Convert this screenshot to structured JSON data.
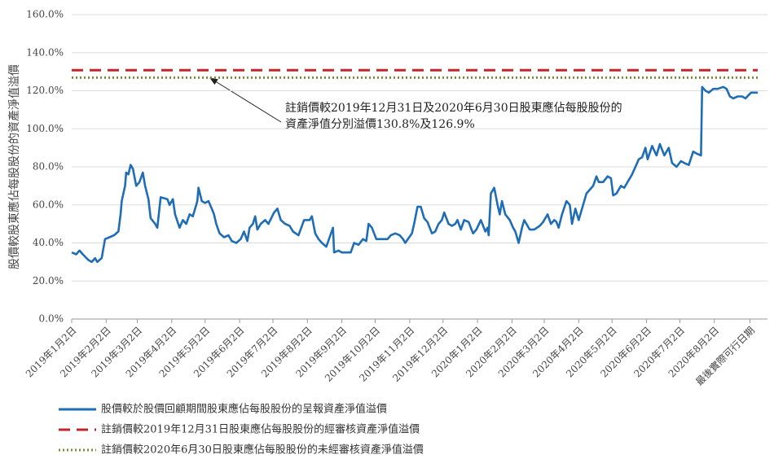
{
  "chart_data": {
    "type": "line",
    "ylabel": "股價較股東應佔每股股份的資產淨值溢價",
    "ylim": [
      0,
      160
    ],
    "yticks": [
      {
        "value": 0,
        "label": "0.0%"
      },
      {
        "value": 20,
        "label": "20.0%"
      },
      {
        "value": 40,
        "label": "40.0%"
      },
      {
        "value": 60,
        "label": "60.0%"
      },
      {
        "value": 80,
        "label": "80.0%"
      },
      {
        "value": 100,
        "label": "100.0%"
      },
      {
        "value": 120,
        "label": "120.0%"
      },
      {
        "value": 140,
        "label": "140.0%"
      },
      {
        "value": 160,
        "label": "160.0%"
      }
    ],
    "xlim": [
      "2019-01-02",
      "2020-09-10"
    ],
    "xticks": [
      {
        "value": "2019-01-02",
        "label": "2019年1月2日"
      },
      {
        "value": "2019-02-02",
        "label": "2019年2月2日"
      },
      {
        "value": "2019-03-02",
        "label": "2019年3月2日"
      },
      {
        "value": "2019-04-02",
        "label": "2019年4月2日"
      },
      {
        "value": "2019-05-02",
        "label": "2019年5月2日"
      },
      {
        "value": "2019-06-02",
        "label": "2019年6月2日"
      },
      {
        "value": "2019-07-02",
        "label": "2019年7月2日"
      },
      {
        "value": "2019-08-02",
        "label": "2019年8月2日"
      },
      {
        "value": "2019-09-02",
        "label": "2019年9月2日"
      },
      {
        "value": "2019-10-02",
        "label": "2019年10月2日"
      },
      {
        "value": "2019-11-02",
        "label": "2019年11月2日"
      },
      {
        "value": "2019-12-02",
        "label": "2019年12月2日"
      },
      {
        "value": "2020-01-02",
        "label": "2020年1月2日"
      },
      {
        "value": "2020-02-02",
        "label": "2020年2月2日"
      },
      {
        "value": "2020-03-02",
        "label": "2020年3月2日"
      },
      {
        "value": "2020-04-02",
        "label": "2020年4月2日"
      },
      {
        "value": "2020-05-02",
        "label": "2020年5月2日"
      },
      {
        "value": "2020-06-02",
        "label": "2020年6月2日"
      },
      {
        "value": "2020-07-02",
        "label": "2020年7月2日"
      },
      {
        "value": "2020-08-02",
        "label": "2020年8月2日"
      },
      {
        "value": "2020-09-03",
        "label": "最後實際可行日期"
      }
    ],
    "grid": true,
    "series": [
      {
        "name": "股價較於股價回顧期間股東應佔每股股份的呈報資產淨值溢價",
        "color": "#1f6db5",
        "x": [
          "2019-01-02",
          "2019-01-06",
          "2019-01-09",
          "2019-01-12",
          "2019-01-17",
          "2019-01-20",
          "2019-01-23",
          "2019-01-25",
          "2019-01-29",
          "2019-02-01",
          "2019-02-05",
          "2019-02-09",
          "2019-02-13",
          "2019-02-15",
          "2019-02-16",
          "2019-02-19",
          "2019-02-20",
          "2019-02-22",
          "2019-02-24",
          "2019-02-26",
          "2019-03-01",
          "2019-03-04",
          "2019-03-07",
          "2019-03-09",
          "2019-03-12",
          "2019-03-14",
          "2019-03-18",
          "2019-03-20",
          "2019-03-23",
          "2019-03-29",
          "2019-03-31",
          "2019-04-03",
          "2019-04-05",
          "2019-04-09",
          "2019-04-12",
          "2019-04-15",
          "2019-04-18",
          "2019-04-21",
          "2019-04-23",
          "2019-04-25",
          "2019-04-26",
          "2019-04-29",
          "2019-05-02",
          "2019-05-05",
          "2019-05-08",
          "2019-05-10",
          "2019-05-12",
          "2019-05-15",
          "2019-05-19",
          "2019-05-23",
          "2019-05-26",
          "2019-05-30",
          "2019-06-03",
          "2019-06-06",
          "2019-06-09",
          "2019-06-11",
          "2019-06-14",
          "2019-06-16",
          "2019-06-18",
          "2019-06-21",
          "2019-06-25",
          "2019-06-28",
          "2019-07-03",
          "2019-07-06",
          "2019-07-09",
          "2019-07-13",
          "2019-07-17",
          "2019-07-20",
          "2019-07-25",
          "2019-07-30",
          "2019-08-04",
          "2019-08-06",
          "2019-08-09",
          "2019-08-12",
          "2019-08-15",
          "2019-08-19",
          "2019-08-22",
          "2019-08-25",
          "2019-08-26",
          "2019-08-30",
          "2019-09-02",
          "2019-09-10",
          "2019-09-13",
          "2019-09-17",
          "2019-09-21",
          "2019-09-24",
          "2019-09-26",
          "2019-09-29",
          "2019-10-03",
          "2019-10-08",
          "2019-10-13",
          "2019-10-16",
          "2019-10-20",
          "2019-10-24",
          "2019-10-27",
          "2019-10-29",
          "2019-11-04",
          "2019-11-06",
          "2019-11-09",
          "2019-11-12",
          "2019-11-15",
          "2019-11-18",
          "2019-11-22",
          "2019-11-25",
          "2019-11-28",
          "2019-12-01",
          "2019-12-03",
          "2019-12-07",
          "2019-12-10",
          "2019-12-13",
          "2019-12-15",
          "2019-12-18",
          "2019-12-21",
          "2019-12-25",
          "2019-12-29",
          "2020-01-01",
          "2020-01-05",
          "2020-01-09",
          "2020-01-11",
          "2020-01-12",
          "2020-01-14",
          "2020-01-17",
          "2020-01-20",
          "2020-01-22",
          "2020-01-24",
          "2020-01-27",
          "2020-01-31",
          "2020-02-03",
          "2020-02-05",
          "2020-02-08",
          "2020-02-11",
          "2020-02-13",
          "2020-02-16",
          "2020-02-18",
          "2020-02-22",
          "2020-02-27",
          "2020-03-01",
          "2020-03-05",
          "2020-03-08",
          "2020-03-11",
          "2020-03-13",
          "2020-03-15",
          "2020-03-18",
          "2020-03-22",
          "2020-03-25",
          "2020-03-27",
          "2020-03-30",
          "2020-04-02",
          "2020-04-06",
          "2020-04-09",
          "2020-04-12",
          "2020-04-15",
          "2020-04-18",
          "2020-04-20",
          "2020-04-24",
          "2020-04-28",
          "2020-05-01",
          "2020-05-03",
          "2020-05-06",
          "2020-05-10",
          "2020-05-13",
          "2020-05-16",
          "2020-05-20",
          "2020-05-23",
          "2020-05-26",
          "2020-05-29",
          "2020-06-01",
          "2020-06-03",
          "2020-06-07",
          "2020-06-11",
          "2020-06-14",
          "2020-06-18",
          "2020-06-22",
          "2020-06-25",
          "2020-06-29",
          "2020-07-03",
          "2020-07-06",
          "2020-07-10",
          "2020-07-14",
          "2020-07-17",
          "2020-07-21",
          "2020-07-22",
          "2020-07-25",
          "2020-07-28",
          "2020-08-01",
          "2020-08-05",
          "2020-08-10",
          "2020-08-13",
          "2020-08-16",
          "2020-08-19",
          "2020-08-23",
          "2020-08-27",
          "2020-08-30",
          "2020-09-04",
          "2020-09-10"
        ],
        "values": [
          35,
          34,
          36,
          34,
          31,
          30,
          32,
          30,
          32,
          42,
          43,
          44,
          46,
          55,
          62,
          70,
          77,
          76,
          81,
          79,
          70,
          72,
          77,
          70,
          63,
          53,
          50,
          48,
          64,
          63,
          60,
          63,
          55,
          48,
          52,
          50,
          55,
          54,
          58,
          62,
          69,
          62,
          61,
          62,
          58,
          55,
          50,
          45,
          43,
          44,
          41,
          40,
          42,
          46,
          41,
          48,
          50,
          54,
          47,
          50,
          52,
          50,
          56,
          58,
          52,
          50,
          49,
          46,
          44,
          52,
          52,
          54,
          45,
          42,
          40,
          38,
          43,
          48,
          35,
          36,
          35,
          35,
          40,
          39,
          42,
          41,
          50,
          48,
          42,
          42,
          42,
          44,
          45,
          44,
          42,
          40,
          45,
          50,
          59,
          59,
          53,
          51,
          45,
          46,
          50,
          52,
          56,
          50,
          49,
          50,
          52,
          47,
          52,
          51,
          45,
          47,
          52,
          46,
          48,
          44,
          66,
          69,
          60,
          55,
          62,
          55,
          52,
          48,
          46,
          40,
          48,
          52,
          49,
          47,
          47,
          49,
          51,
          55,
          50,
          52,
          51,
          48,
          55,
          62,
          60,
          50,
          58,
          52,
          60,
          66,
          68,
          70,
          75,
          72,
          72,
          75,
          74,
          65,
          66,
          70,
          69,
          72,
          76,
          80,
          84,
          85,
          90,
          84,
          91,
          86,
          92,
          86,
          90,
          82,
          80,
          83,
          82,
          81,
          88,
          87,
          86,
          122,
          120,
          119,
          121,
          121,
          122,
          121,
          117,
          116,
          117,
          117,
          116,
          119,
          119
        ]
      }
    ],
    "reference_lines": [
      {
        "name": "註銷價較2019年12月31日股東應佔每股股份的經審核資產淨值溢價",
        "color": "#c0272d",
        "value": 130.8,
        "style": "dashed"
      },
      {
        "name": "註銷價較2020年6月30日股東應佔每股股份的未經審核資產淨值溢價",
        "color": "#7d8a3c",
        "value": 126.9,
        "style": "dotted"
      }
    ],
    "annotation": [
      "註銷價較2019年12月31日及2020年6月30日股東應佔每股股份的",
      "資產淨值分別溢價130.8%及126.9%"
    ]
  }
}
